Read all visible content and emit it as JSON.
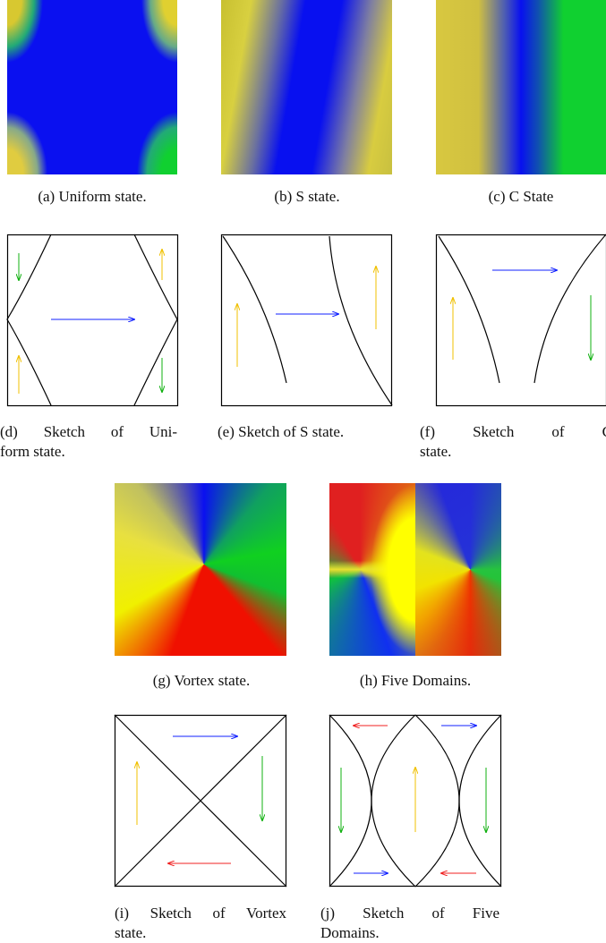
{
  "figure": {
    "subfigures": [
      {
        "label": "(a)",
        "caption_lines": [
          "Uniform state."
        ]
      },
      {
        "label": "(b)",
        "caption_lines": [
          "S state."
        ]
      },
      {
        "label": "(c)",
        "caption_lines": [
          "C State"
        ]
      },
      {
        "label": "(d)",
        "caption_lines": [
          "Sketch of Uni-",
          "form state."
        ]
      },
      {
        "label": "(e)",
        "caption_lines": [
          "Sketch of S state."
        ]
      },
      {
        "label": "(f)",
        "caption_lines": [
          "Sketch of C",
          "state."
        ]
      },
      {
        "label": "(g)",
        "caption_lines": [
          "Vortex state."
        ]
      },
      {
        "label": "(h)",
        "caption_lines": [
          "Five Domains."
        ]
      },
      {
        "label": "(i)",
        "caption_lines": [
          "Sketch of Vortex",
          "state."
        ]
      },
      {
        "label": "(j)",
        "caption_lines": [
          "Sketch of Five",
          "Domains."
        ]
      }
    ]
  }
}
